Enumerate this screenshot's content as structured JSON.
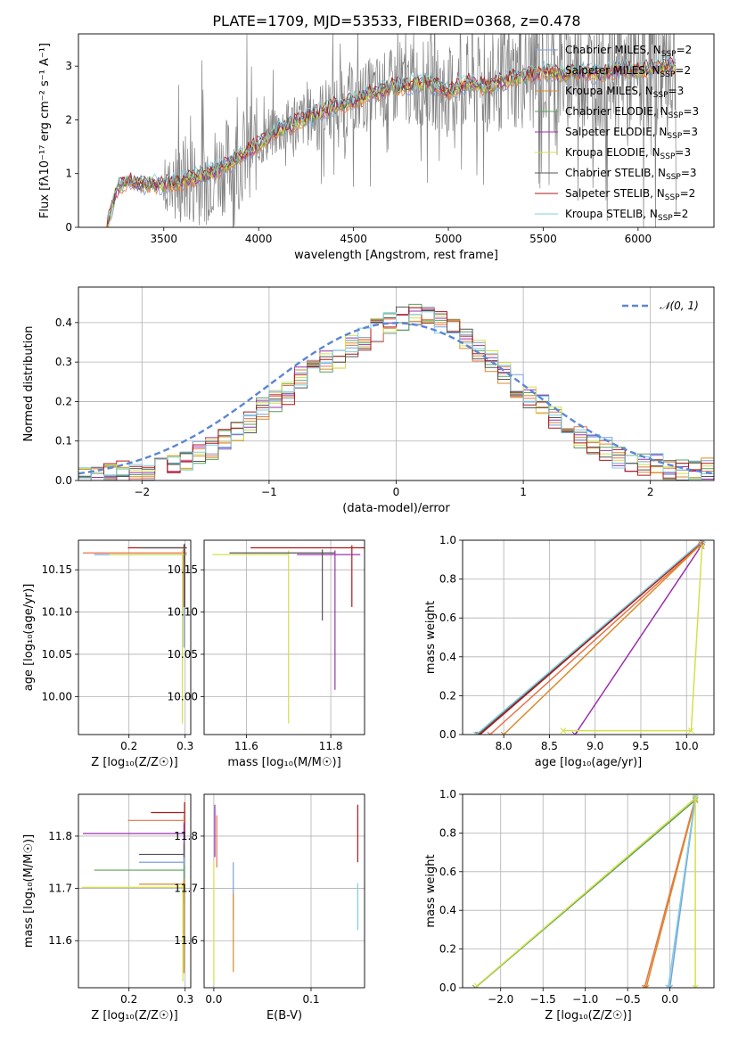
{
  "title": "PLATE=1709, MJD=53533, FIBERID=0368, z=0.478",
  "colors": {
    "chabrier_miles": "#7b9fd9",
    "salpeter_miles": "#e8734a",
    "kroupa_miles": "#d98b2b",
    "chabrier_elodie": "#5aa05a",
    "salpeter_elodie": "#9b30b0",
    "kroupa_elodie": "#d4e04a",
    "chabrier_stelib": "#555555",
    "salpeter_stelib": "#b01818",
    "kroupa_stelib": "#7ecfe0",
    "gaussian": "#5b86d4",
    "data": "#808080",
    "grid": "#b0b0b0"
  },
  "chart_data": [
    {
      "id": "spectrum",
      "type": "line",
      "xlabel": "wavelength [Angstrom, rest frame]",
      "ylabel": "Flux [fλ10⁻¹⁷ erg cm⁻² s⁻¹ A⁻¹]",
      "xlim": [
        3050,
        6400
      ],
      "ylim": [
        0,
        3.6
      ],
      "xticks": [
        3500,
        4000,
        4500,
        5000,
        5500,
        6000
      ],
      "yticks": [
        0,
        1,
        2,
        3
      ],
      "grid": false,
      "legend_position": "top-right",
      "legend": [
        {
          "label": "Chabrier MILES, N",
          "sub": "SSP",
          "suffix": "=2",
          "color_key": "chabrier_miles"
        },
        {
          "label": "Salpeter MILES, N",
          "sub": "SSP",
          "suffix": "=2",
          "color_key": "salpeter_miles"
        },
        {
          "label": "Kroupa MILES, N",
          "sub": "SSP",
          "suffix": "=3",
          "color_key": "kroupa_miles"
        },
        {
          "label": "Chabrier ELODIE, N",
          "sub": "SSP",
          "suffix": "=3",
          "color_key": "chabrier_elodie"
        },
        {
          "label": "Salpeter ELODIE, N",
          "sub": "SSP",
          "suffix": "=3",
          "color_key": "salpeter_elodie"
        },
        {
          "label": "Kroupa ELODIE, N",
          "sub": "SSP",
          "suffix": "=3",
          "color_key": "kroupa_elodie"
        },
        {
          "label": "Chabrier STELIB, N",
          "sub": "SSP",
          "suffix": "=3",
          "color_key": "chabrier_stelib"
        },
        {
          "label": "Salpeter STELIB, N",
          "sub": "SSP",
          "suffix": "=2",
          "color_key": "salpeter_stelib"
        },
        {
          "label": "Kroupa STELIB, N",
          "sub": "SSP",
          "suffix": "=2",
          "color_key": "kroupa_stelib"
        }
      ],
      "model_continuum": {
        "x": [
          3200,
          3250,
          3300,
          3400,
          3500,
          3600,
          3700,
          3800,
          3900,
          4000,
          4100,
          4200,
          4300,
          4400,
          4500,
          4600,
          4700,
          4800,
          4900,
          5000,
          5100,
          5200,
          5300,
          5400,
          5500,
          5600,
          5700,
          5800,
          5900,
          6000,
          6100,
          6200
        ],
        "y": [
          0.0,
          0.7,
          0.85,
          0.8,
          0.8,
          0.85,
          0.95,
          1.1,
          1.3,
          1.55,
          1.8,
          1.95,
          2.1,
          2.25,
          2.35,
          2.5,
          2.6,
          2.65,
          2.7,
          2.5,
          2.7,
          2.6,
          2.75,
          2.8,
          2.9,
          2.85,
          2.9,
          2.85,
          2.95,
          2.9,
          3.0,
          3.0
        ]
      }
    },
    {
      "id": "residuals",
      "type": "line",
      "xlabel": "(data-model)/error",
      "ylabel": "Normed distribution",
      "xlim": [
        -2.5,
        2.5
      ],
      "ylim": [
        0,
        0.49
      ],
      "xticks": [
        -2,
        -1,
        0,
        1,
        2
      ],
      "yticks": [
        0.0,
        0.1,
        0.2,
        0.3,
        0.4
      ],
      "grid": true,
      "legend_position": "top-right",
      "gaussian_label": "𝒩(0, 1)",
      "histogram_center": {
        "bin_width": 0.1,
        "x_start": -2.5,
        "values": [
          0.01,
          0.01,
          0.02,
          0.02,
          0.02,
          0.03,
          0.04,
          0.04,
          0.05,
          0.07,
          0.08,
          0.1,
          0.12,
          0.15,
          0.18,
          0.2,
          0.22,
          0.26,
          0.29,
          0.3,
          0.31,
          0.34,
          0.36,
          0.38,
          0.4,
          0.41,
          0.42,
          0.41,
          0.4,
          0.38,
          0.36,
          0.33,
          0.3,
          0.27,
          0.24,
          0.21,
          0.19,
          0.16,
          0.14,
          0.11,
          0.09,
          0.08,
          0.06,
          0.05,
          0.04,
          0.04,
          0.03,
          0.03,
          0.03,
          0.03
        ]
      }
    },
    {
      "id": "age_vs_Z",
      "type": "scatter",
      "xlabel": "Z [log₁₀(Z/Z☉)]",
      "ylabel": "age  [log₁₀(age/yr)]",
      "xlim": [
        0.11,
        0.31
      ],
      "ylim": [
        9.955,
        10.185
      ],
      "xticks": [
        0.2,
        0.3
      ],
      "yticks": [
        10.0,
        10.05,
        10.1,
        10.15
      ],
      "grid": true,
      "crosses": [
        {
          "color_key": "chabrier_miles",
          "x": 0.298,
          "xerr": [
            0.16,
            0.005
          ],
          "y": 10.168,
          "yerr": [
            0.11,
            0.008
          ]
        },
        {
          "color_key": "salpeter_miles",
          "x": 0.298,
          "xerr": [
            0.18,
            0.005
          ],
          "y": 10.17,
          "yerr": [
            0.02,
            0.005
          ]
        },
        {
          "color_key": "salpeter_stelib",
          "x": 0.298,
          "xerr": [
            0.1,
            0.005
          ],
          "y": 10.176,
          "yerr": [
            0.07,
            0.004
          ]
        },
        {
          "color_key": "kroupa_elodie",
          "x": 0.295,
          "xerr": [
            0.13,
            0.005
          ],
          "y": 10.168,
          "yerr": [
            0.2,
            0.005
          ]
        },
        {
          "color_key": "chabrier_stelib",
          "x": 0.299,
          "xerr": [
            0.08,
            0.004
          ],
          "y": 10.176,
          "yerr": [
            0.07,
            0.005
          ]
        }
      ]
    },
    {
      "id": "age_vs_mass",
      "type": "scatter",
      "xlabel": "mass [log₁₀(M/M☉)]",
      "ylabel": "",
      "xlim": [
        11.5,
        11.88
      ],
      "ylim": [
        9.955,
        10.185
      ],
      "xticks": [
        11.6,
        11.8
      ],
      "yticks": [
        10.0,
        10.05,
        10.1,
        10.15
      ],
      "grid": true,
      "crosses": [
        {
          "color_key": "kroupa_elodie",
          "x": 11.7,
          "xerr": [
            0.18,
            0.0
          ],
          "y": 10.168,
          "yerr": [
            0.2,
            0.005
          ]
        },
        {
          "color_key": "salpeter_stelib",
          "x": 11.85,
          "xerr": [
            0.24,
            0.03
          ],
          "y": 10.176,
          "yerr": [
            0.07,
            0.003
          ]
        },
        {
          "color_key": "salpeter_elodie",
          "x": 11.81,
          "xerr": [
            0.09,
            0.06
          ],
          "y": 10.168,
          "yerr": [
            0.16,
            0.005
          ]
        },
        {
          "color_key": "chabrier_stelib",
          "x": 11.78,
          "xerr": [
            0.22,
            0.03
          ],
          "y": 10.17,
          "yerr": [
            0.08,
            0.004
          ]
        }
      ]
    },
    {
      "id": "mass_weight_vs_age",
      "type": "line",
      "xlabel": "age  [log₁₀(age/yr)]",
      "ylabel": "mass weight",
      "xlim": [
        7.55,
        10.3
      ],
      "ylim": [
        0,
        1.0
      ],
      "xticks": [
        8.0,
        8.5,
        9.0,
        9.5,
        10.0
      ],
      "yticks": [
        0.0,
        0.2,
        0.4,
        0.6,
        0.8,
        1.0
      ],
      "grid": true,
      "series": [
        {
          "color_key": "chabrier_stelib",
          "x": [
            7.72,
            10.17
          ],
          "y": [
            0.0,
            0.99
          ]
        },
        {
          "color_key": "salpeter_stelib",
          "x": [
            7.74,
            10.17
          ],
          "y": [
            0.0,
            0.99
          ]
        },
        {
          "color_key": "kroupa_stelib",
          "x": [
            7.7,
            10.18
          ],
          "y": [
            0.0,
            1.0
          ]
        },
        {
          "color_key": "salpeter_miles",
          "x": [
            7.85,
            10.16
          ],
          "y": [
            0.0,
            0.98
          ]
        },
        {
          "color_key": "kroupa_miles",
          "x": [
            8.0,
            10.16
          ],
          "y": [
            0.0,
            0.98
          ]
        },
        {
          "color_key": "salpeter_elodie",
          "x": [
            8.78,
            10.16
          ],
          "y": [
            0.0,
            0.97
          ]
        },
        {
          "color_key": "kroupa_elodie",
          "x": [
            8.65,
            10.05,
            10.17
          ],
          "y": [
            0.02,
            0.02,
            0.97
          ]
        }
      ]
    },
    {
      "id": "mass_vs_Z",
      "type": "scatter",
      "xlabel": "Z [log₁₀(Z/Z☉)]",
      "ylabel": "mass [log₁₀(M/M☉)]",
      "xlim": [
        0.11,
        0.31
      ],
      "ylim": [
        11.51,
        11.88
      ],
      "xticks": [
        0.2,
        0.3
      ],
      "yticks": [
        11.6,
        11.7,
        11.8
      ],
      "grid": true,
      "crosses": [
        {
          "color_key": "salpeter_stelib",
          "x": 0.299,
          "xerr": [
            0.06,
            0.0
          ],
          "y": 11.845,
          "yerr": [
            0.04,
            0.02
          ]
        },
        {
          "color_key": "salpeter_miles",
          "x": 0.298,
          "xerr": [
            0.1,
            0.0
          ],
          "y": 11.83,
          "yerr": [
            0.02,
            0.01
          ]
        },
        {
          "color_key": "salpeter_elodie",
          "x": 0.298,
          "xerr": [
            0.18,
            0.0
          ],
          "y": 11.805,
          "yerr": [
            0.05,
            0.02
          ]
        },
        {
          "color_key": "chabrier_stelib",
          "x": 0.298,
          "xerr": [
            0.08,
            0.0
          ],
          "y": 11.765,
          "yerr": [
            0.02,
            0.02
          ]
        },
        {
          "color_key": "chabrier_miles",
          "x": 0.298,
          "xerr": [
            0.08,
            0.0
          ],
          "y": 11.75,
          "yerr": [
            0.08,
            0.01
          ]
        },
        {
          "color_key": "chabrier_elodie",
          "x": 0.298,
          "xerr": [
            0.16,
            0.0
          ],
          "y": 11.735,
          "yerr": [
            0.06,
            0.01
          ]
        },
        {
          "color_key": "kroupa_elodie",
          "x": 0.296,
          "xerr": [
            0.18,
            0.0
          ],
          "y": 11.702,
          "yerr": [
            0.18,
            0.01
          ]
        },
        {
          "color_key": "kroupa_miles",
          "x": 0.298,
          "xerr": [
            0.08,
            0.0
          ],
          "y": 11.708,
          "yerr": [
            0.17,
            0.01
          ]
        }
      ]
    },
    {
      "id": "mass_vs_ebv",
      "type": "scatter",
      "xlabel": "E(B-V)",
      "ylabel": "",
      "xlim": [
        -0.01,
        0.155
      ],
      "ylim": [
        11.51,
        11.88
      ],
      "xticks": [
        0.0,
        0.1
      ],
      "yticks": [
        11.6,
        11.7,
        11.8
      ],
      "grid": true,
      "segments": [
        {
          "color_key": "salpeter_elodie",
          "x": 0.001,
          "y": [
            11.76,
            11.86
          ]
        },
        {
          "color_key": "kroupa_elodie",
          "x": 0.0,
          "y": [
            11.52,
            11.75
          ]
        },
        {
          "color_key": "salpeter_miles",
          "x": 0.003,
          "y": [
            11.74,
            11.84
          ]
        },
        {
          "color_key": "chabrier_miles",
          "x": 0.02,
          "y": [
            11.64,
            11.75
          ]
        },
        {
          "color_key": "kroupa_miles",
          "x": 0.02,
          "y": [
            11.54,
            11.69
          ]
        },
        {
          "color_key": "salpeter_stelib",
          "x": 0.148,
          "y": [
            11.75,
            11.86
          ]
        },
        {
          "color_key": "kroupa_stelib",
          "x": 0.148,
          "y": [
            11.62,
            11.71
          ]
        }
      ]
    },
    {
      "id": "mass_weight_vs_Z",
      "type": "line",
      "xlabel": "Z [log₁₀(Z/Z☉)]",
      "ylabel": "mass weight",
      "xlim": [
        -2.45,
        0.52
      ],
      "ylim": [
        0,
        1.0
      ],
      "xticks": [
        -2.0,
        -1.5,
        -1.0,
        -0.5,
        0.0
      ],
      "yticks": [
        0.0,
        0.2,
        0.4,
        0.6,
        0.8,
        1.0
      ],
      "grid": true,
      "series": [
        {
          "color_key": "chabrier_elodie",
          "x": [
            -2.3,
            0.3
          ],
          "y": [
            0.0,
            0.97
          ]
        },
        {
          "color_key": "kroupa_elodie",
          "x": [
            -2.28,
            0.3
          ],
          "y": [
            0.01,
            0.98
          ]
        },
        {
          "color_key": "salpeter_miles",
          "x": [
            -0.3,
            0.3
          ],
          "y": [
            0.0,
            0.98
          ]
        },
        {
          "color_key": "kroupa_miles",
          "x": [
            -0.28,
            0.3
          ],
          "y": [
            0.0,
            0.97
          ]
        },
        {
          "color_key": "chabrier_miles",
          "x": [
            0.0,
            0.3
          ],
          "y": [
            0.0,
            0.98
          ]
        },
        {
          "color_key": "kroupa_stelib",
          "x": [
            -0.02,
            0.3
          ],
          "y": [
            0.0,
            0.99
          ]
        },
        {
          "color_key": "kroupa_elodie",
          "x": [
            0.3,
            0.3
          ],
          "y": [
            0.0,
            0.98
          ]
        }
      ]
    }
  ]
}
